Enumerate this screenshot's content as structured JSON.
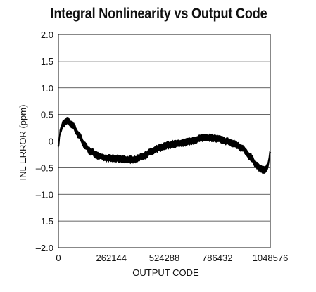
{
  "chart_data": {
    "type": "line",
    "title": "Integral Nonlinearity vs Output Code",
    "xlabel": "OUTPUT CODE",
    "ylabel": "INL ERROR (ppm)",
    "xlim": [
      0,
      1048576
    ],
    "ylim": [
      -2.0,
      2.0
    ],
    "grid": "horizontal",
    "x_ticks": [
      0,
      262144,
      524288,
      786432,
      1048576
    ],
    "x_tick_labels": [
      "0",
      "262144",
      "524288",
      "786432",
      "1048576"
    ],
    "y_ticks": [
      2.0,
      1.5,
      1.0,
      0.5,
      0,
      -0.5,
      -1.0,
      -1.5,
      -2.0
    ],
    "y_tick_labels": [
      "2.0",
      "1.5",
      "1.0",
      "0.5",
      "0",
      "–0.5",
      "–1.0",
      "–1.5",
      "–2.0"
    ],
    "series": [
      {
        "color": "#000000",
        "band_width": 0.12,
        "x": [
          0,
          10000,
          25000,
          45000,
          70000,
          100000,
          130000,
          160000,
          200000,
          240000,
          280000,
          320000,
          350000,
          380000,
          420000,
          460000,
          500000,
          540000,
          580000,
          620000,
          660000,
          700000,
          730000,
          760000,
          790000,
          830000,
          870000,
          910000,
          950000,
          980000,
          1000000,
          1020000,
          1035000,
          1048576
        ],
        "values": [
          -0.08,
          0.2,
          0.33,
          0.38,
          0.3,
          0.12,
          -0.08,
          -0.2,
          -0.28,
          -0.32,
          -0.33,
          -0.34,
          -0.35,
          -0.34,
          -0.28,
          -0.2,
          -0.13,
          -0.08,
          -0.05,
          -0.03,
          0.0,
          0.05,
          0.07,
          0.06,
          0.04,
          0.0,
          -0.05,
          -0.13,
          -0.3,
          -0.45,
          -0.52,
          -0.55,
          -0.48,
          -0.22
        ]
      }
    ]
  }
}
